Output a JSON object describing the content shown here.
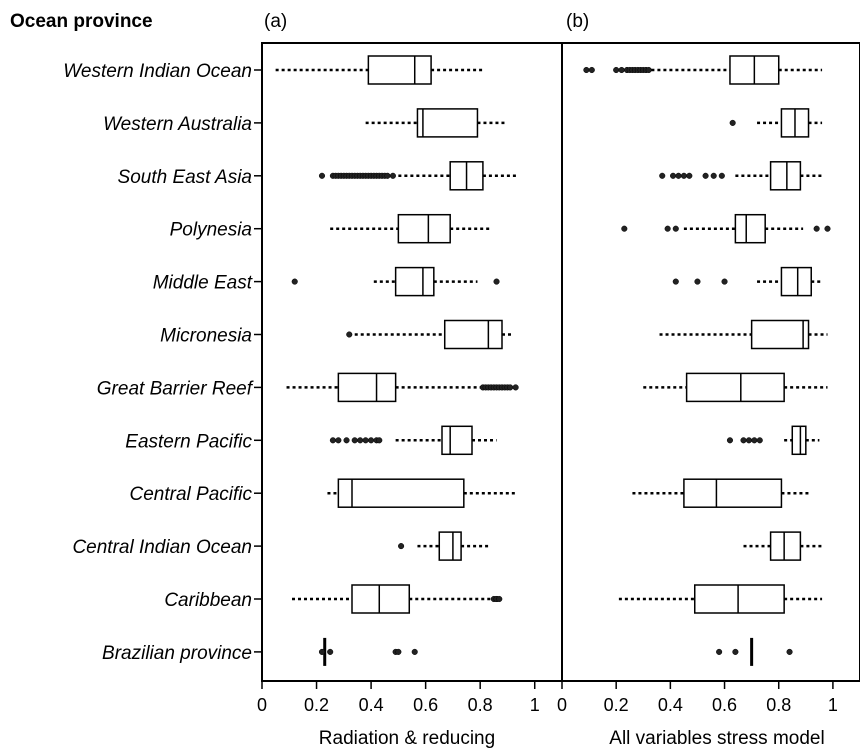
{
  "chart_data": {
    "type": "box",
    "y_heading": "Ocean province",
    "categories": [
      "Western Indian Ocean",
      "Western Australia",
      "South East Asia",
      "Polynesia",
      "Middle East",
      "Micronesia",
      "Great Barrier Reef",
      "Eastern Pacific",
      "Central Pacific",
      "Central Indian Ocean",
      "Caribbean",
      "Brazilian province"
    ],
    "xlim": [
      0,
      1.1
    ],
    "xticks": [
      0,
      0.2,
      0.4,
      0.6,
      0.8,
      1
    ],
    "tick_labels": [
      "0",
      "0.2",
      "0.4",
      "0.6",
      "0.8",
      "1"
    ],
    "panels": [
      {
        "tag": "(a)",
        "xlabel": "Radiation & reducing",
        "boxes": [
          {
            "category": "Western Indian Ocean",
            "whisker_low": 0.05,
            "q1": 0.39,
            "median": 0.56,
            "q3": 0.62,
            "whisker_high": 0.81,
            "outliers": []
          },
          {
            "category": "Western Australia",
            "whisker_low": 0.38,
            "q1": 0.57,
            "median": 0.59,
            "q3": 0.79,
            "whisker_high": 0.89,
            "outliers": []
          },
          {
            "category": "South East Asia",
            "whisker_low": 0.5,
            "q1": 0.69,
            "median": 0.75,
            "q3": 0.81,
            "whisker_high": 0.94,
            "outliers": [
              0.22,
              0.26,
              0.27,
              0.28,
              0.29,
              0.3,
              0.31,
              0.32,
              0.33,
              0.34,
              0.35,
              0.36,
              0.37,
              0.38,
              0.39,
              0.4,
              0.41,
              0.42,
              0.43,
              0.44,
              0.45,
              0.46,
              0.48
            ]
          },
          {
            "category": "Polynesia",
            "whisker_low": 0.25,
            "q1": 0.5,
            "median": 0.61,
            "q3": 0.69,
            "whisker_high": 0.84,
            "outliers": []
          },
          {
            "category": "Middle East",
            "whisker_low": 0.41,
            "q1": 0.49,
            "median": 0.59,
            "q3": 0.63,
            "whisker_high": 0.79,
            "outliers": [
              0.12,
              0.86
            ]
          },
          {
            "category": "Micronesia",
            "whisker_low": 0.34,
            "q1": 0.67,
            "median": 0.83,
            "q3": 0.88,
            "whisker_high": 0.92,
            "outliers": [
              0.32
            ]
          },
          {
            "category": "Great Barrier Reef",
            "whisker_low": 0.09,
            "q1": 0.28,
            "median": 0.42,
            "q3": 0.49,
            "whisker_high": 0.81,
            "outliers": [
              0.81,
              0.82,
              0.83,
              0.84,
              0.85,
              0.86,
              0.87,
              0.88,
              0.89,
              0.9,
              0.91,
              0.93
            ]
          },
          {
            "category": "Eastern Pacific",
            "whisker_low": 0.49,
            "q1": 0.66,
            "median": 0.69,
            "q3": 0.77,
            "whisker_high": 0.86,
            "outliers": [
              0.26,
              0.28,
              0.31,
              0.34,
              0.36,
              0.38,
              0.4,
              0.42,
              0.43
            ]
          },
          {
            "category": "Central Pacific",
            "whisker_low": 0.24,
            "q1": 0.28,
            "median": 0.33,
            "q3": 0.74,
            "whisker_high": 0.93,
            "outliers": []
          },
          {
            "category": "Central Indian Ocean",
            "whisker_low": 0.57,
            "q1": 0.65,
            "median": 0.7,
            "q3": 0.73,
            "whisker_high": 0.83,
            "outliers": [
              0.51
            ]
          },
          {
            "category": "Caribbean",
            "whisker_low": 0.11,
            "q1": 0.33,
            "median": 0.43,
            "q3": 0.54,
            "whisker_high": 0.84,
            "outliers": [
              0.85,
              0.86,
              0.86,
              0.87
            ]
          },
          {
            "category": "Brazilian province",
            "whisker_low": 0.23,
            "q1": 0.23,
            "median": 0.23,
            "q3": 0.23,
            "whisker_high": 0.23,
            "outliers": [
              0.22,
              0.25,
              0.49,
              0.5,
              0.56
            ]
          }
        ]
      },
      {
        "tag": "(b)",
        "xlabel": "All variables stress model",
        "boxes": [
          {
            "category": "Western Indian Ocean",
            "whisker_low": 0.33,
            "q1": 0.62,
            "median": 0.71,
            "q3": 0.8,
            "whisker_high": 0.96,
            "outliers": [
              0.09,
              0.11,
              0.2,
              0.22,
              0.24,
              0.25,
              0.26,
              0.27,
              0.28,
              0.29,
              0.3,
              0.31,
              0.32
            ]
          },
          {
            "category": "Western Australia",
            "whisker_low": 0.72,
            "q1": 0.81,
            "median": 0.86,
            "q3": 0.91,
            "whisker_high": 0.96,
            "outliers": [
              0.63
            ]
          },
          {
            "category": "South East Asia",
            "whisker_low": 0.64,
            "q1": 0.77,
            "median": 0.83,
            "q3": 0.88,
            "whisker_high": 0.96,
            "outliers": [
              0.37,
              0.41,
              0.43,
              0.45,
              0.47,
              0.53,
              0.56,
              0.59
            ]
          },
          {
            "category": "Polynesia",
            "whisker_low": 0.45,
            "q1": 0.64,
            "median": 0.68,
            "q3": 0.75,
            "whisker_high": 0.89,
            "outliers": [
              0.23,
              0.39,
              0.42,
              0.94,
              0.98
            ]
          },
          {
            "category": "Middle East",
            "whisker_low": 0.72,
            "q1": 0.81,
            "median": 0.87,
            "q3": 0.92,
            "whisker_high": 0.96,
            "outliers": [
              0.42,
              0.5,
              0.6
            ]
          },
          {
            "category": "Micronesia",
            "whisker_low": 0.36,
            "q1": 0.7,
            "median": 0.89,
            "q3": 0.91,
            "whisker_high": 0.98,
            "outliers": []
          },
          {
            "category": "Great Barrier Reef",
            "whisker_low": 0.3,
            "q1": 0.46,
            "median": 0.66,
            "q3": 0.82,
            "whisker_high": 0.98,
            "outliers": []
          },
          {
            "category": "Eastern Pacific",
            "whisker_low": 0.82,
            "q1": 0.85,
            "median": 0.88,
            "q3": 0.9,
            "whisker_high": 0.95,
            "outliers": [
              0.62,
              0.67,
              0.69,
              0.71,
              0.73
            ]
          },
          {
            "category": "Central Pacific",
            "whisker_low": 0.26,
            "q1": 0.45,
            "median": 0.57,
            "q3": 0.81,
            "whisker_high": 0.91,
            "outliers": []
          },
          {
            "category": "Central Indian Ocean",
            "whisker_low": 0.67,
            "q1": 0.77,
            "median": 0.82,
            "q3": 0.88,
            "whisker_high": 0.96,
            "outliers": []
          },
          {
            "category": "Caribbean",
            "whisker_low": 0.21,
            "q1": 0.49,
            "median": 0.65,
            "q3": 0.82,
            "whisker_high": 0.96,
            "outliers": []
          },
          {
            "category": "Brazilian province",
            "whisker_low": 0.7,
            "q1": 0.7,
            "median": 0.7,
            "q3": 0.7,
            "whisker_high": 0.7,
            "outliers": [
              0.58,
              0.64,
              0.84
            ]
          }
        ]
      }
    ]
  }
}
